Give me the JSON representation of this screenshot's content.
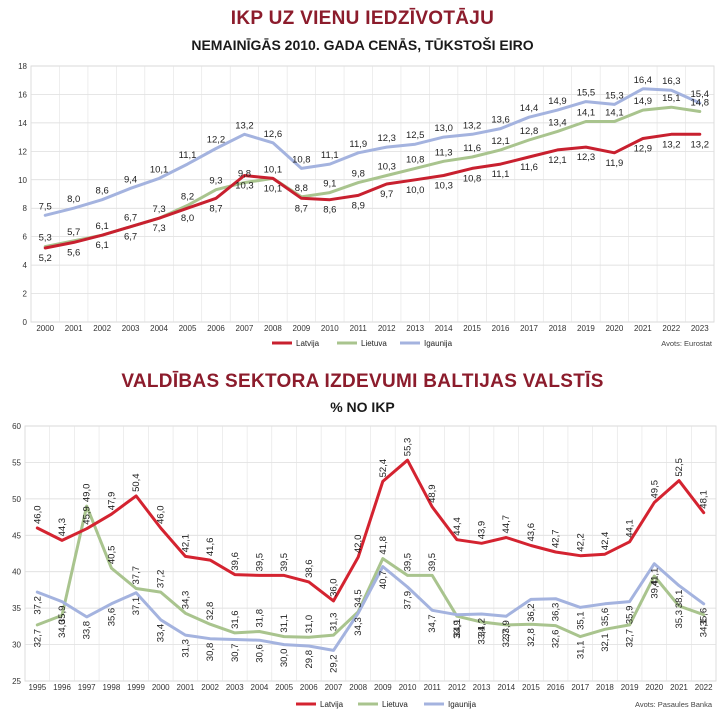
{
  "chart_data": [
    {
      "type": "line",
      "title": "IKP UZ VIENU IEDZĪVOTĀJU",
      "subtitle": "NEMAINĪGĀS 2010. GADA CENĀS, TŪKSTOŠI EIRO",
      "x": [
        "2000",
        "2001",
        "2002",
        "2003",
        "2004",
        "2005",
        "2006",
        "2007",
        "2008",
        "2009",
        "2010",
        "2011",
        "2012",
        "2013",
        "2014",
        "2015",
        "2016",
        "2017",
        "2018",
        "2019",
        "2020",
        "2021",
        "2022",
        "2023"
      ],
      "ylim": [
        0,
        18
      ],
      "yticks": [
        "0",
        "2",
        "4",
        "6",
        "8",
        "10",
        "12",
        "14",
        "16",
        "18"
      ],
      "series": [
        {
          "name": "Latvija",
          "color": "#c8202f",
          "values": [
            5.2,
            5.6,
            6.1,
            6.7,
            7.3,
            8.0,
            8.7,
            10.3,
            10.1,
            8.7,
            8.6,
            8.9,
            9.7,
            10.0,
            10.3,
            10.8,
            11.1,
            11.6,
            12.1,
            12.3,
            11.9,
            12.9,
            13.2,
            13.2
          ],
          "labels": [
            "5,2",
            "5,6",
            "6,1",
            "6,7",
            "7,3",
            "8,0",
            "8,7",
            "10,3",
            "10,1",
            "8,7",
            "8,6",
            "8,9",
            "9,7",
            "10,0",
            "10,3",
            "10,8",
            "11,1",
            "11,6",
            "12,1",
            "12,3",
            "11,9",
            "12,9",
            "13,2",
            "13,2"
          ]
        },
        {
          "name": "Lietuva",
          "color": "#a9c48e",
          "values": [
            5.3,
            5.7,
            6.1,
            6.7,
            7.3,
            8.2,
            9.3,
            9.8,
            10.1,
            8.8,
            9.1,
            9.8,
            10.3,
            10.8,
            11.3,
            11.6,
            12.1,
            12.8,
            13.4,
            14.1,
            14.1,
            14.9,
            15.1,
            14.8
          ],
          "labels": [
            "5,3",
            "5,7",
            "6,1",
            "6,7",
            "7,3",
            "8,2",
            "9,3",
            "9,8",
            "10,1",
            "8,8",
            "9,1",
            "9,8",
            "10,3",
            "10,8",
            "11,3",
            "11,6",
            "12,1",
            "12,8",
            "13,4",
            "14,1",
            "14,1",
            "14,9",
            "15,1",
            "14,8"
          ]
        },
        {
          "name": "Igaunija",
          "color": "#a4b3df",
          "values": [
            7.5,
            8.0,
            8.6,
            9.4,
            10.1,
            11.1,
            12.2,
            13.2,
            12.6,
            10.8,
            11.1,
            11.9,
            12.3,
            12.5,
            13.0,
            13.2,
            13.6,
            14.4,
            14.9,
            15.5,
            15.3,
            16.4,
            16.3,
            15.4
          ],
          "labels": [
            "7,5",
            "8,0",
            "8,6",
            "9,4",
            "10,1",
            "11,1",
            "12,2",
            "13,2",
            "12,6",
            "10,8",
            "11,1",
            "11,9",
            "12,3",
            "12,5",
            "13,0",
            "13,2",
            "13,6",
            "14,4",
            "14,9",
            "15,5",
            "15,3",
            "16,4",
            "16,3",
            "15,4"
          ]
        }
      ],
      "legend": [
        "Latvija",
        "Lietuva",
        "Igaunija"
      ],
      "source": "Avots: Eurostat"
    },
    {
      "type": "line",
      "title": "VALDĪBAS SEKTORA IZDEVUMI BALTIJAS VALSTĪS",
      "subtitle": "% NO IKP",
      "x": [
        "1995",
        "1996",
        "1997",
        "1998",
        "1999",
        "2000",
        "2001",
        "2002",
        "2003",
        "2004",
        "2005",
        "2006",
        "2007",
        "2008",
        "2009",
        "2010",
        "2011",
        "2012",
        "2013",
        "2014",
        "2015",
        "2016",
        "2017",
        "2018",
        "2019",
        "2020",
        "2021",
        "2022"
      ],
      "ylim": [
        25,
        60
      ],
      "yticks": [
        "25",
        "30",
        "35",
        "40",
        "45",
        "50",
        "55",
        "60"
      ],
      "series": [
        {
          "name": "Latvija",
          "color": "#d42330",
          "values": [
            46.0,
            44.3,
            45.9,
            47.9,
            50.4,
            46.0,
            42.1,
            41.6,
            39.6,
            39.5,
            39.5,
            38.6,
            36.0,
            42.0,
            52.4,
            55.3,
            48.9,
            44.4,
            43.9,
            44.7,
            43.6,
            42.7,
            42.2,
            42.4,
            44.1,
            49.5,
            52.5,
            48.1
          ],
          "labels": [
            "46,0",
            "44,3",
            "45,9",
            "47,9",
            "50,4",
            "46,0",
            "42,1",
            "41,6",
            "39,6",
            "39,5",
            "39,5",
            "38,6",
            "36,0",
            "42,0",
            "52,4",
            "55,3",
            "48,9",
            "44,4",
            "43,9",
            "44,7",
            "43,6",
            "42,7",
            "42,2",
            "42,4",
            "44,1",
            "49,5",
            "52,5",
            "48,1"
          ]
        },
        {
          "name": "Lietuva",
          "color": "#a9c48e",
          "values": [
            32.7,
            34.0,
            49.0,
            40.5,
            37.7,
            37.2,
            34.3,
            32.8,
            31.6,
            31.8,
            31.1,
            31.0,
            31.3,
            34.5,
            41.8,
            39.5,
            39.5,
            33.9,
            33.1,
            32.7,
            32.8,
            32.6,
            31.1,
            32.1,
            32.7,
            39.4,
            35.3,
            34.1
          ],
          "labels": [
            "32,7",
            "34,0",
            "49,0",
            "40,5",
            "37,7",
            "37,2",
            "34,3",
            "32,8",
            "31,6",
            "31,8",
            "31,1",
            "31,0",
            "31,3",
            "34,5",
            "41,8",
            "39,5",
            "39,5",
            "33,9",
            "33,1",
            "32,7",
            "32,8",
            "32,6",
            "31,1",
            "32,1",
            "32,7",
            "39,4",
            "35,3",
            "34,1"
          ]
        },
        {
          "name": "Igaunija",
          "color": "#a4b3df",
          "values": [
            37.2,
            35.9,
            33.8,
            35.6,
            37.1,
            33.4,
            31.3,
            30.8,
            30.7,
            30.6,
            30.0,
            29.8,
            29.2,
            34.3,
            40.7,
            37.9,
            34.7,
            34.1,
            34.2,
            33.9,
            36.2,
            36.3,
            35.1,
            35.6,
            35.9,
            41.1,
            38.1,
            35.6
          ],
          "labels": [
            "37,2",
            "35,9",
            "33,8",
            "35,6",
            "37,1",
            "33,4",
            "31,3",
            "30,8",
            "30,7",
            "30,6",
            "30,0",
            "29,8",
            "29,2",
            "34,3",
            "40,7",
            "37,9",
            "34,7",
            "34,1",
            "34,2",
            "33,9",
            "36,2",
            "36,3",
            "35,1",
            "35,6",
            "35,9",
            "41,1",
            "38,1",
            "35,6"
          ]
        }
      ],
      "legend": [
        "Latvija",
        "Lietuva",
        "Igaunija"
      ],
      "source": "Avots: Pasaules Banka"
    }
  ]
}
